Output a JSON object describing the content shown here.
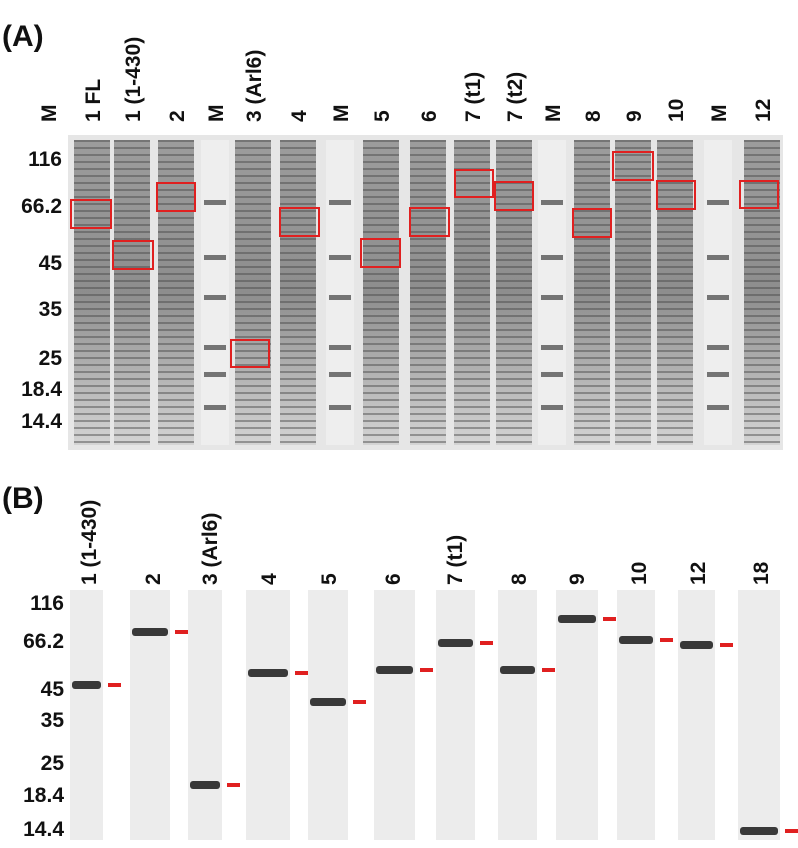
{
  "panel_a": {
    "label": "(A)",
    "lanes": [
      "M",
      "1 FL",
      "1 (1-430)",
      "2",
      "M",
      "3 (Arl6)",
      "4",
      "M",
      "5",
      "6",
      "7 (t1)",
      "7 (t2)",
      "M",
      "8",
      "9",
      "10",
      "M",
      "12"
    ],
    "mw_markers": [
      "116",
      "66.2",
      "45",
      "35",
      "25",
      "18.4",
      "14.4"
    ]
  },
  "panel_b": {
    "label": "(B)",
    "lanes": [
      "1 (1-430)",
      "2",
      "3 (Arl6)",
      "4",
      "5",
      "6",
      "7 (t1)",
      "8",
      "9",
      "10",
      "12",
      "18"
    ],
    "mw_markers": [
      "116",
      "66.2",
      "45",
      "35",
      "25",
      "18.4",
      "14.4"
    ]
  }
}
